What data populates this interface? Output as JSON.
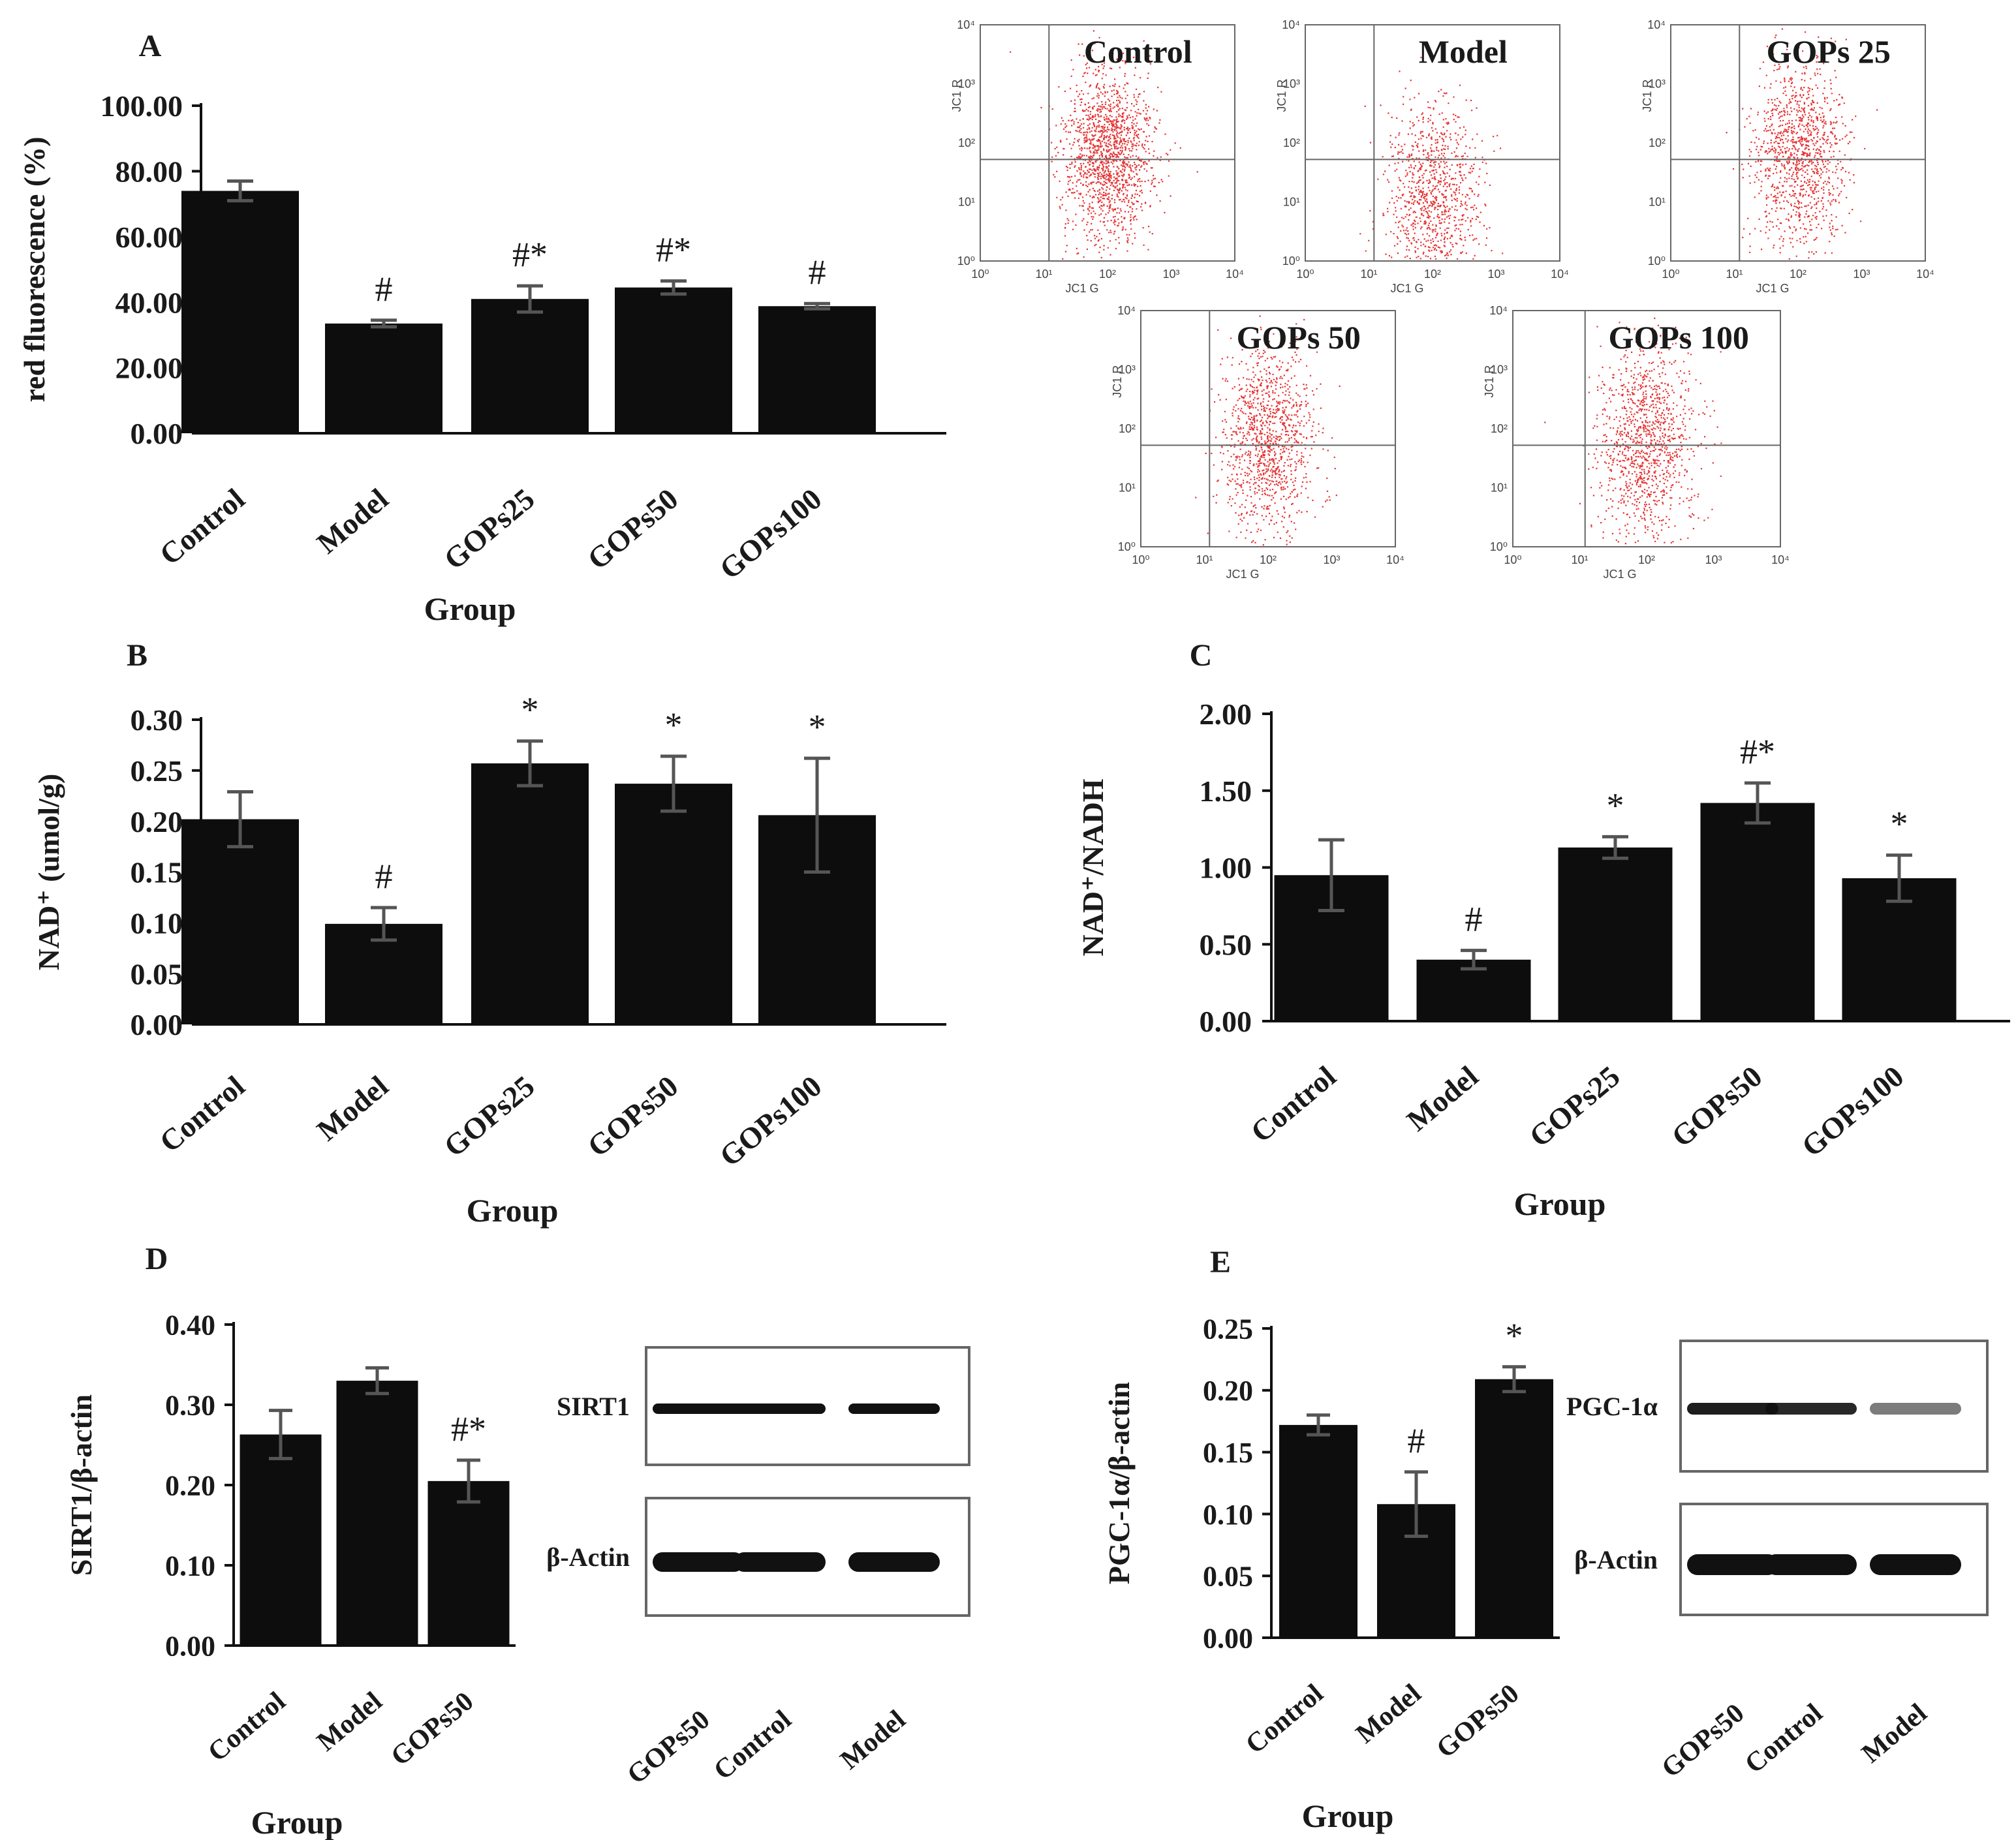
{
  "colors": {
    "bar": "#0d0d0d",
    "err": "#555555",
    "dots": "#e01010",
    "frame": "#666666"
  },
  "chart_data": [
    {
      "id": "A",
      "type": "bar",
      "panel_label": "A",
      "categories": [
        "Control",
        "Model",
        "GOPs25",
        "GOPs50",
        "GOPs100"
      ],
      "values": [
        74.0,
        33.5,
        41.0,
        44.5,
        38.8
      ],
      "errors": [
        3.0,
        1.0,
        4.0,
        2.0,
        0.8
      ],
      "annotations": [
        "",
        "#",
        "#*",
        "#*",
        "#"
      ],
      "ticks": [
        "0.00",
        "20.00",
        "40.00",
        "60.00",
        "80.00",
        "100.00"
      ],
      "ylim": [
        0,
        100
      ],
      "ylabel": "red  fluorescence (%)",
      "xlabel": "Group"
    },
    {
      "id": "B",
      "type": "bar",
      "panel_label": "B",
      "categories": [
        "Control",
        "Model",
        "GOPs25",
        "GOPs50",
        "GOPs100"
      ],
      "values": [
        0.202,
        0.099,
        0.257,
        0.237,
        0.206
      ],
      "errors": [
        0.027,
        0.016,
        0.022,
        0.027,
        0.056
      ],
      "annotations": [
        "",
        "#",
        "*",
        "*",
        "*"
      ],
      "ticks": [
        "0.00",
        "0.05",
        "0.10",
        "0.15",
        "0.20",
        "0.25",
        "0.30"
      ],
      "ylim": [
        0,
        0.3
      ],
      "ylabel": "NAD⁺ (umol/g)",
      "xlabel": "Group"
    },
    {
      "id": "C",
      "type": "bar",
      "panel_label": "C",
      "categories": [
        "Control",
        "Model",
        "GOPs25",
        "GOPs50",
        "GOPs100"
      ],
      "values": [
        0.95,
        0.4,
        1.13,
        1.42,
        0.93
      ],
      "errors": [
        0.23,
        0.06,
        0.07,
        0.13,
        0.15
      ],
      "annotations": [
        "",
        "#",
        "*",
        "#*",
        "*"
      ],
      "ticks": [
        "0.00",
        "0.50",
        "1.00",
        "1.50",
        "2.00"
      ],
      "ylim": [
        0,
        2.0
      ],
      "ylabel": "NAD⁺/NADH",
      "xlabel": "Group"
    },
    {
      "id": "D",
      "type": "bar",
      "panel_label": "D",
      "categories": [
        "Control",
        "Model",
        "GOPs50"
      ],
      "values": [
        0.263,
        0.33,
        0.205
      ],
      "errors": [
        0.03,
        0.016,
        0.026
      ],
      "annotations": [
        "",
        "",
        "#*"
      ],
      "ticks": [
        "0.00",
        "0.10",
        "0.20",
        "0.30",
        "0.40"
      ],
      "ylim": [
        0,
        0.4
      ],
      "ylabel": "SIRT1/β-actin",
      "xlabel": "Group"
    },
    {
      "id": "E",
      "type": "bar",
      "panel_label": "E",
      "categories": [
        "Control",
        "Model",
        "GOPs50"
      ],
      "values": [
        0.172,
        0.108,
        0.209
      ],
      "errors": [
        0.008,
        0.026,
        0.01
      ],
      "annotations": [
        "",
        "#",
        "*"
      ],
      "ticks": [
        "0.00",
        "0.05",
        "0.10",
        "0.15",
        "0.20",
        "0.25"
      ],
      "ylim": [
        0,
        0.25
      ],
      "ylabel": "PGC-1α/β-actin",
      "xlabel": "Group"
    }
  ],
  "flow": {
    "plots": [
      {
        "label": "Control",
        "density": "high"
      },
      {
        "label": "Model",
        "density": "low"
      },
      {
        "label": "GOPs 25",
        "density": "mid"
      },
      {
        "label": "GOPs 50",
        "density": "mid"
      },
      {
        "label": "GOPs 100",
        "density": "mid"
      }
    ],
    "xaxis": "JC1 G",
    "yaxis": "JC1 R",
    "ticks": [
      "10⁰",
      "10¹",
      "10²",
      "10³",
      "10⁴"
    ]
  },
  "blots": [
    {
      "id": "D",
      "bands": [
        "SIRT1",
        "β-Actin"
      ],
      "lanes": [
        "GOPs50",
        "Control",
        "Model"
      ]
    },
    {
      "id": "E",
      "bands": [
        "PGC-1α",
        "β-Actin"
      ],
      "lanes": [
        "GOPs50",
        "Control",
        "Model"
      ]
    }
  ]
}
